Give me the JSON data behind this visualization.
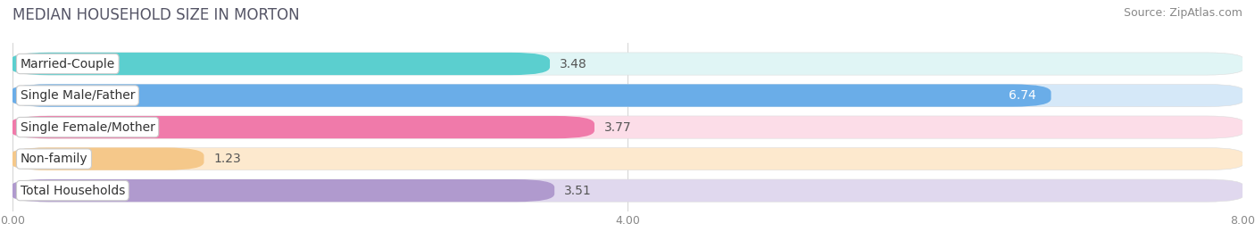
{
  "title": "MEDIAN HOUSEHOLD SIZE IN MORTON",
  "source": "Source: ZipAtlas.com",
  "categories": [
    "Married-Couple",
    "Single Male/Father",
    "Single Female/Mother",
    "Non-family",
    "Total Households"
  ],
  "values": [
    3.48,
    6.74,
    3.77,
    1.23,
    3.51
  ],
  "bar_colors": [
    "#5bcfcf",
    "#6aade8",
    "#f07aaa",
    "#f5c88a",
    "#b09ace"
  ],
  "bar_bg_colors": [
    "#e0f5f5",
    "#d5e8f8",
    "#fcdde8",
    "#fde9ce",
    "#e0d8ee"
  ],
  "xlim": [
    0,
    8.0
  ],
  "xticks": [
    0.0,
    4.0,
    8.0
  ],
  "xtick_labels": [
    "0.00",
    "4.00",
    "8.00"
  ],
  "title_fontsize": 12,
  "source_fontsize": 9,
  "label_fontsize": 10,
  "value_fontsize": 10,
  "background_color": "#ffffff",
  "title_color": "#555566"
}
